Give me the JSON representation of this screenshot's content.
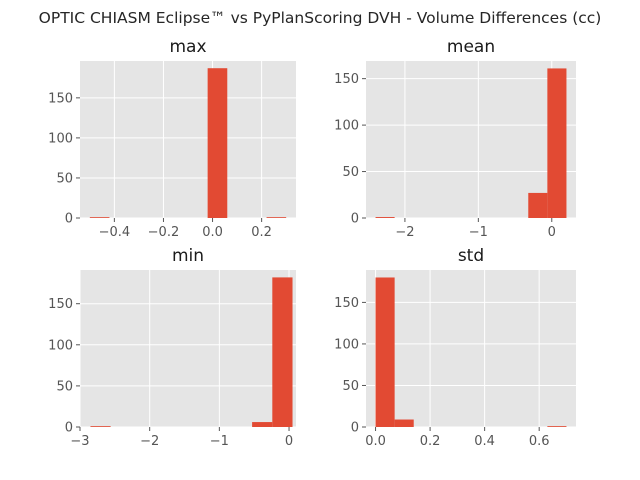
{
  "title": "OPTIC CHIASM Eclipse™ vs PyPlanScoring DVH - Volume Differences (cc)",
  "colors": {
    "bar": "#E24A33",
    "panel_bg": "#E5E5E5",
    "grid": "#FFFFFF",
    "tick_text": "#555555"
  },
  "chart_data": [
    {
      "type": "bar",
      "title": "max",
      "bins": [
        {
          "x0": -0.5,
          "x1": -0.42,
          "count": 1
        },
        {
          "x0": -0.42,
          "x1": -0.34,
          "count": 0
        },
        {
          "x0": -0.34,
          "x1": -0.26,
          "count": 0
        },
        {
          "x0": -0.26,
          "x1": -0.18,
          "count": 0
        },
        {
          "x0": -0.18,
          "x1": -0.1,
          "count": 0
        },
        {
          "x0": -0.1,
          "x1": -0.02,
          "count": 0
        },
        {
          "x0": -0.02,
          "x1": 0.06,
          "count": 187
        },
        {
          "x0": 0.06,
          "x1": 0.14,
          "count": 0
        },
        {
          "x0": 0.14,
          "x1": 0.22,
          "count": 0
        },
        {
          "x0": 0.22,
          "x1": 0.3,
          "count": 1
        }
      ],
      "xlim": [
        -0.54,
        0.34
      ],
      "ylim": [
        0,
        196
      ],
      "xticks": [
        -0.4,
        -0.2,
        0.0,
        0.2
      ],
      "xtick_labels": [
        "−0.4",
        "−0.2",
        "0.0",
        "0.2"
      ],
      "yticks": [
        0,
        50,
        100,
        150
      ],
      "ytick_labels": [
        "0",
        "50",
        "100",
        "150"
      ]
    },
    {
      "type": "bar",
      "title": "mean",
      "bins": [
        {
          "x0": -2.4,
          "x1": -2.14,
          "count": 1
        },
        {
          "x0": -2.14,
          "x1": -1.88,
          "count": 0
        },
        {
          "x0": -1.88,
          "x1": -1.62,
          "count": 0
        },
        {
          "x0": -1.62,
          "x1": -1.36,
          "count": 0
        },
        {
          "x0": -1.36,
          "x1": -1.1,
          "count": 0
        },
        {
          "x0": -1.1,
          "x1": -0.84,
          "count": 0
        },
        {
          "x0": -0.84,
          "x1": -0.58,
          "count": 0
        },
        {
          "x0": -0.58,
          "x1": -0.32,
          "count": 0
        },
        {
          "x0": -0.32,
          "x1": -0.06,
          "count": 27
        },
        {
          "x0": -0.06,
          "x1": 0.2,
          "count": 161
        }
      ],
      "xlim": [
        -2.53,
        0.33
      ],
      "ylim": [
        0,
        169
      ],
      "xticks": [
        -2,
        -1,
        0
      ],
      "xtick_labels": [
        "−2",
        "−1",
        "0"
      ],
      "yticks": [
        0,
        50,
        100,
        150
      ],
      "ytick_labels": [
        "0",
        "50",
        "100",
        "150"
      ]
    },
    {
      "type": "bar",
      "title": "min",
      "bins": [
        {
          "x0": -2.85,
          "x1": -2.56,
          "count": 1
        },
        {
          "x0": -2.56,
          "x1": -2.27,
          "count": 0
        },
        {
          "x0": -2.27,
          "x1": -1.98,
          "count": 0
        },
        {
          "x0": -1.98,
          "x1": -1.69,
          "count": 0
        },
        {
          "x0": -1.69,
          "x1": -1.4,
          "count": 0
        },
        {
          "x0": -1.4,
          "x1": -1.11,
          "count": 0
        },
        {
          "x0": -1.11,
          "x1": -0.82,
          "count": 0
        },
        {
          "x0": -0.82,
          "x1": -0.53,
          "count": 0
        },
        {
          "x0": -0.53,
          "x1": -0.24,
          "count": 6
        },
        {
          "x0": -0.24,
          "x1": 0.05,
          "count": 182
        }
      ],
      "xlim": [
        -3.0,
        0.1
      ],
      "ylim": [
        0,
        191
      ],
      "xticks": [
        -3,
        -2,
        -1,
        0
      ],
      "xtick_labels": [
        "−3",
        "−2",
        "−1",
        "0"
      ],
      "yticks": [
        0,
        50,
        100,
        150
      ],
      "ytick_labels": [
        "0",
        "50",
        "100",
        "150"
      ]
    },
    {
      "type": "bar",
      "title": "std",
      "bins": [
        {
          "x0": 0.0,
          "x1": 0.07,
          "count": 180
        },
        {
          "x0": 0.07,
          "x1": 0.14,
          "count": 9
        },
        {
          "x0": 0.14,
          "x1": 0.21,
          "count": 0
        },
        {
          "x0": 0.21,
          "x1": 0.28,
          "count": 0
        },
        {
          "x0": 0.28,
          "x1": 0.35,
          "count": 0
        },
        {
          "x0": 0.35,
          "x1": 0.42,
          "count": 0
        },
        {
          "x0": 0.42,
          "x1": 0.49,
          "count": 0
        },
        {
          "x0": 0.49,
          "x1": 0.56,
          "count": 0
        },
        {
          "x0": 0.56,
          "x1": 0.63,
          "count": 0
        },
        {
          "x0": 0.63,
          "x1": 0.7,
          "count": 1
        }
      ],
      "xlim": [
        -0.035,
        0.735
      ],
      "ylim": [
        0,
        189
      ],
      "xticks": [
        0.0,
        0.2,
        0.4,
        0.6
      ],
      "xtick_labels": [
        "0.0",
        "0.2",
        "0.4",
        "0.6"
      ],
      "yticks": [
        0,
        50,
        100,
        150
      ],
      "ytick_labels": [
        "0",
        "50",
        "100",
        "150"
      ]
    }
  ]
}
